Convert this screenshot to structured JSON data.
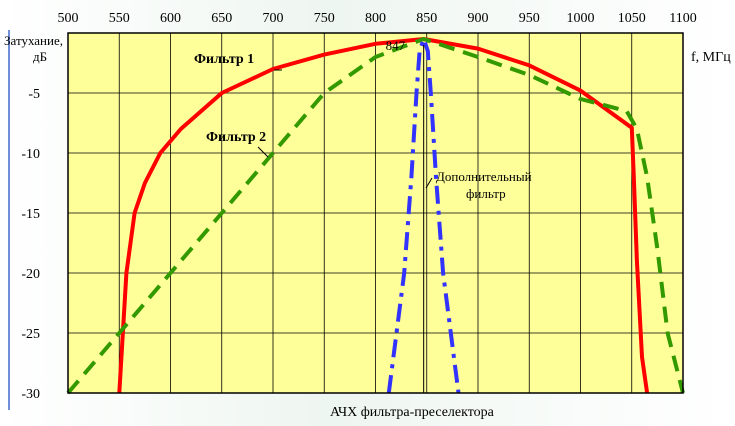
{
  "chart_data": {
    "type": "line",
    "title": "АЧХ фильтра-преселектора",
    "xlabel": "f, МГц",
    "ylabel_line1": "Затухание,",
    "ylabel_line2": "дБ",
    "xlim": [
      500,
      1100
    ],
    "ylim": [
      -30,
      0
    ],
    "x_ticks": [
      "500",
      "550",
      "600",
      "650",
      "700",
      "750",
      "800",
      "850",
      "900",
      "950",
      "1000",
      "1050",
      "1100"
    ],
    "y_ticks": [
      "-5",
      "-10",
      "-15",
      "-20",
      "-25",
      "-30"
    ],
    "grid": true,
    "marker_value": "847",
    "marker_x": 847,
    "series": [
      {
        "name": "Фильтр 1",
        "color": "#ff0000",
        "style": "solid",
        "x": [
          550,
          557,
          565,
          575,
          590,
          610,
          630,
          650,
          700,
          750,
          800,
          847,
          900,
          950,
          1000,
          1050,
          1052,
          1055,
          1060,
          1065
        ],
        "y": [
          -30,
          -20,
          -15,
          -12.5,
          -10,
          -8,
          -6.5,
          -5,
          -3,
          -1.8,
          -0.9,
          -0.5,
          -1.3,
          -2.7,
          -4.8,
          -7.9,
          -12,
          -19,
          -27,
          -30
        ]
      },
      {
        "name": "Фильтр 2",
        "color": "#339900",
        "style": "dashed",
        "x": [
          500,
          550,
          600,
          650,
          700,
          750,
          800,
          847,
          900,
          950,
          1000,
          1045,
          1055,
          1065,
          1075,
          1085,
          1100
        ],
        "y": [
          -30,
          -25,
          -20,
          -15,
          -10,
          -5,
          -2,
          -0.5,
          -2,
          -3.5,
          -5.5,
          -6.5,
          -8,
          -12,
          -18,
          -25,
          -30
        ]
      },
      {
        "name": "Дополнительный фильтр",
        "name_line1": "Дополнительный",
        "name_line2": "фильтр",
        "color": "#3333ff",
        "style": "dashdot",
        "x": [
          813,
          828,
          835,
          840,
          843,
          847,
          851,
          854,
          859,
          866,
          881
        ],
        "y": [
          -30,
          -20,
          -12,
          -5,
          -1.5,
          -0.5,
          -1.5,
          -5,
          -12,
          -20,
          -30
        ]
      }
    ]
  }
}
